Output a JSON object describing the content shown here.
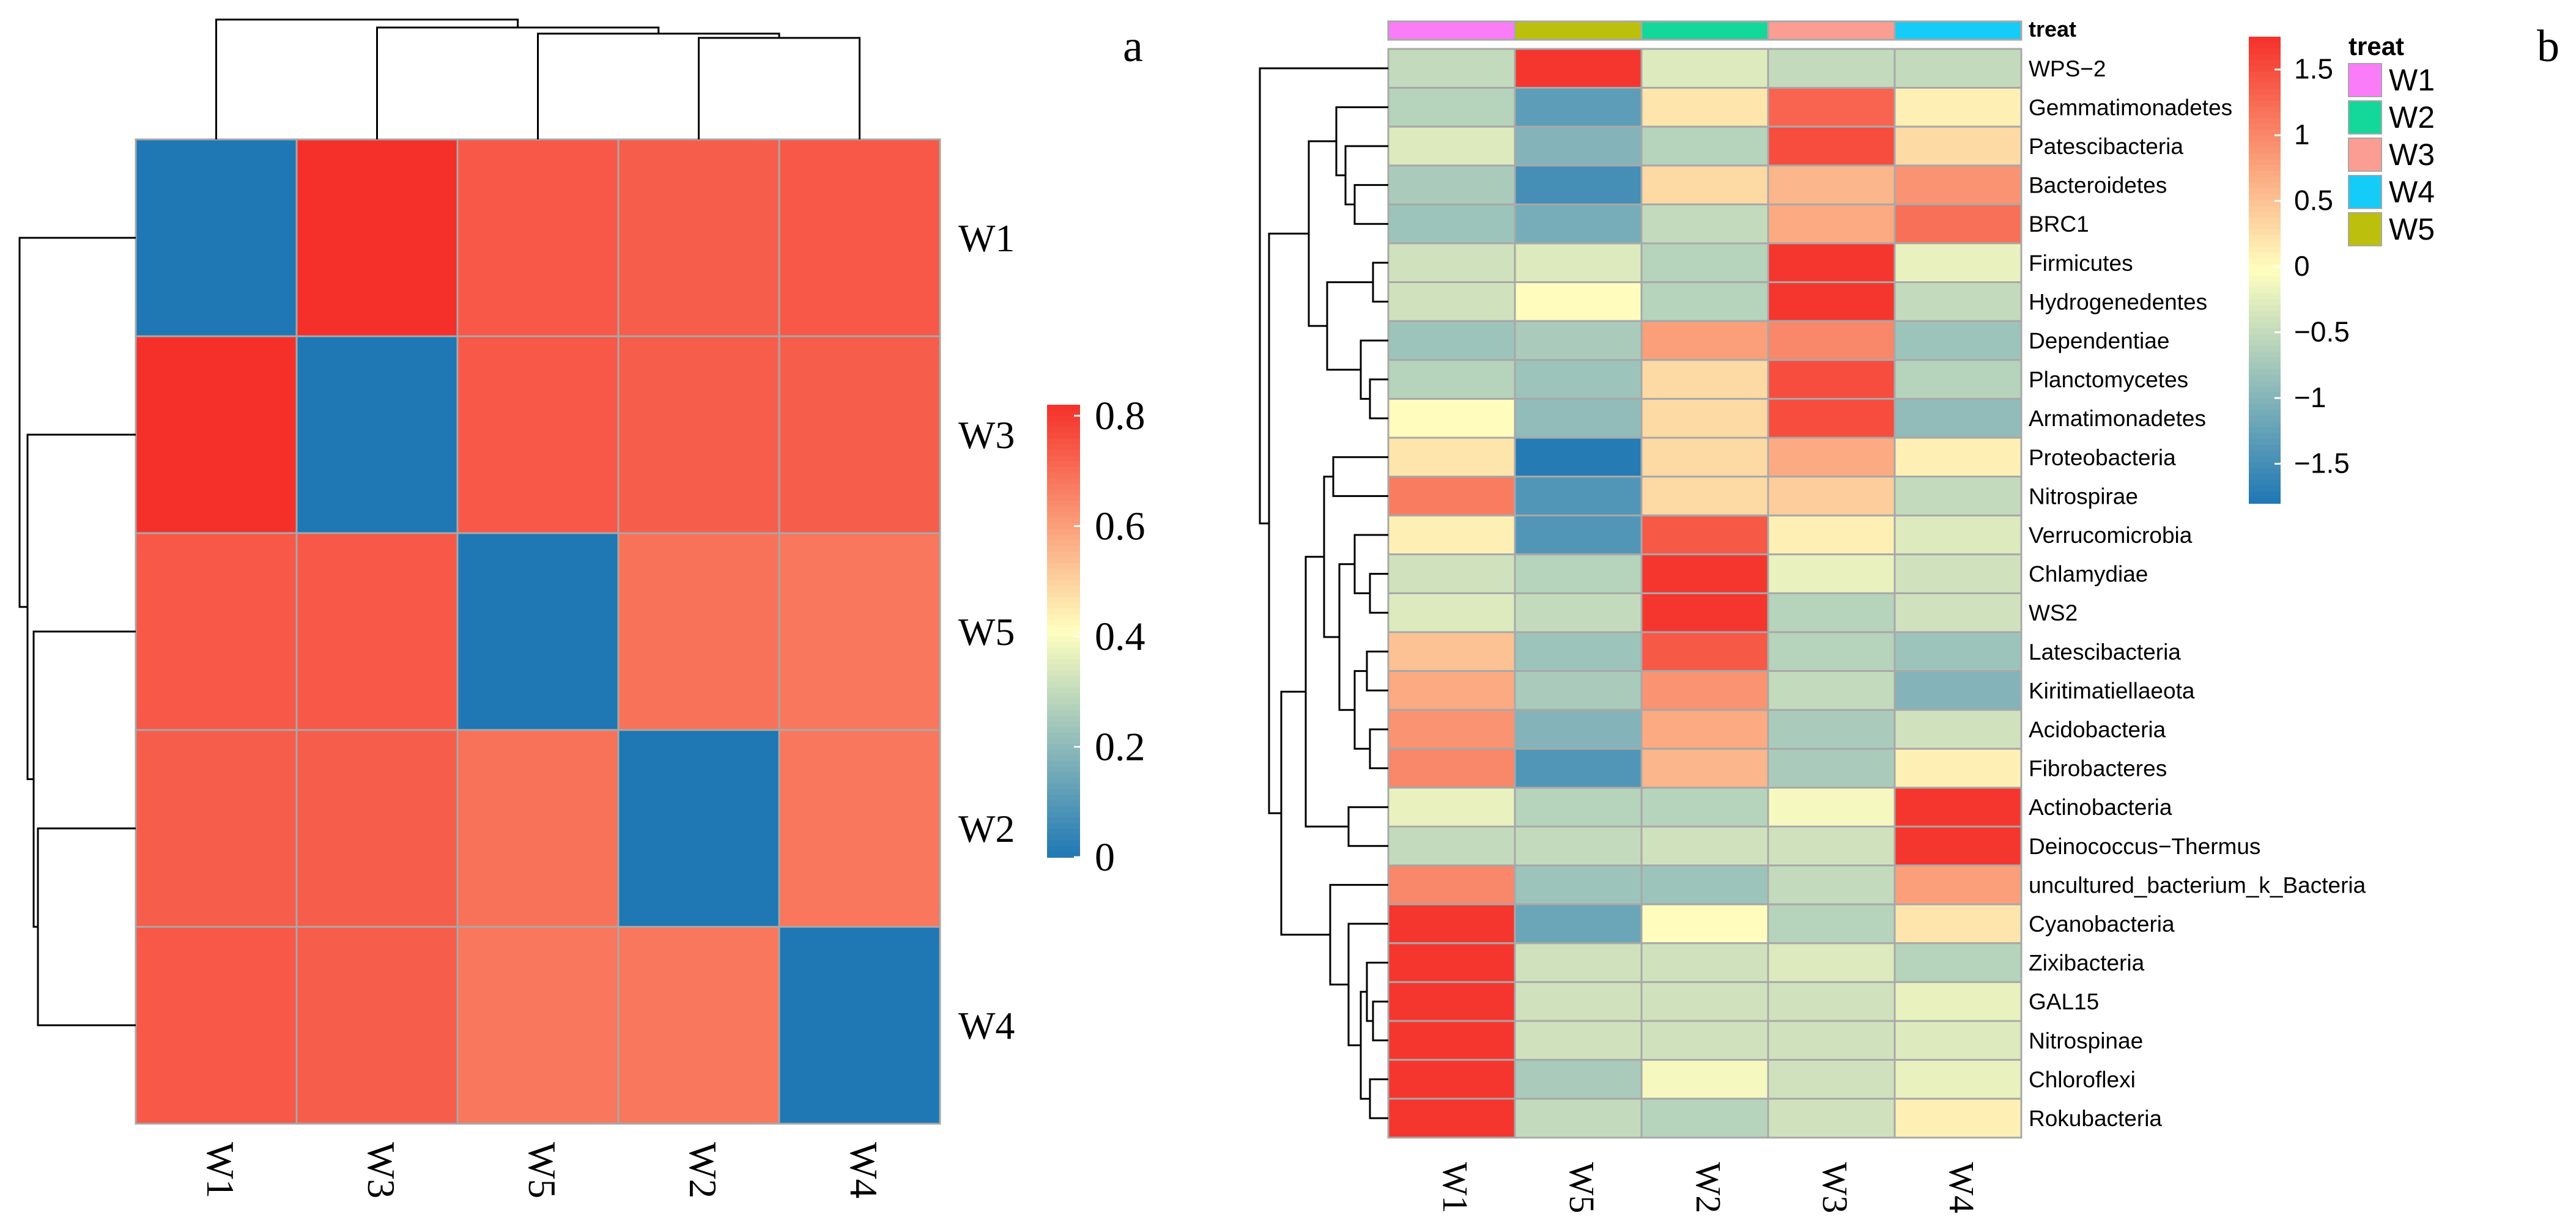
{
  "chart_data": [
    {
      "panel_label": "a",
      "type": "heatmap",
      "title": "",
      "columns": [
        "W1",
        "W3",
        "W5",
        "W2",
        "W4"
      ],
      "rows": [
        "W1",
        "W3",
        "W5",
        "W2",
        "W4"
      ],
      "values": [
        [
          0.0,
          0.82,
          0.74,
          0.73,
          0.74
        ],
        [
          0.82,
          0.0,
          0.74,
          0.73,
          0.73
        ],
        [
          0.74,
          0.74,
          0.0,
          0.69,
          0.68
        ],
        [
          0.73,
          0.73,
          0.69,
          0.0,
          0.68
        ],
        [
          0.74,
          0.73,
          0.68,
          0.68,
          0.0
        ]
      ],
      "colorbar": {
        "ticks": [
          0.8,
          0.6,
          0.4,
          0.2,
          0
        ],
        "range": [
          0,
          0.82
        ]
      },
      "colors": {
        "low": "#1f77b4",
        "mid": "#ffffbf",
        "high": "#f5302a",
        "grid": "#a8a8a8",
        "tree": "#000000"
      }
    },
    {
      "panel_label": "b",
      "type": "heatmap",
      "title": "",
      "columns": [
        "W1",
        "W5",
        "W2",
        "W3",
        "W4"
      ],
      "rows": [
        "WPS−2",
        "Gemmatimonadetes",
        "Patescibacteria",
        "Bacteroidetes",
        "BRC1",
        "Firmicutes",
        "Hydrogenedentes",
        "Dependentiae",
        "Planctomycetes",
        "Armatimonadetes",
        "Proteobacteria",
        "Nitrospirae",
        "Verrucomicrobia",
        "Chlamydiae",
        "WS2",
        "Latescibacteria",
        "Kiritimatiellaeota",
        "Acidobacteria",
        "Fibrobacteres",
        "Actinobacteria",
        "Deinococcus−Thermus",
        "uncultured_bacterium_k_Bacteria",
        "Cyanobacteria",
        "Zixibacteria",
        "GAL15",
        "Nitrospinae",
        "Chloroflexi",
        "Rokubacteria"
      ],
      "values": [
        [
          -0.5,
          1.7,
          -0.3,
          -0.5,
          -0.5
        ],
        [
          -0.6,
          -1.3,
          0.2,
          1.3,
          0.1
        ],
        [
          -0.3,
          -1.0,
          -0.6,
          1.5,
          0.3
        ],
        [
          -0.7,
          -1.5,
          0.3,
          0.6,
          0.9
        ],
        [
          -0.8,
          -1.1,
          -0.5,
          0.7,
          1.2
        ],
        [
          -0.4,
          -0.3,
          -0.6,
          1.7,
          -0.2
        ],
        [
          -0.4,
          0.0,
          -0.6,
          1.7,
          -0.5
        ],
        [
          -0.8,
          -0.7,
          0.8,
          1.0,
          -0.8
        ],
        [
          -0.6,
          -0.8,
          0.3,
          1.5,
          -0.6
        ],
        [
          0.0,
          -0.9,
          0.3,
          1.5,
          -0.9
        ],
        [
          0.2,
          -1.75,
          0.3,
          0.7,
          0.1
        ],
        [
          1.1,
          -1.4,
          0.3,
          0.4,
          -0.5
        ],
        [
          0.1,
          -1.4,
          1.4,
          0.1,
          -0.3
        ],
        [
          -0.4,
          -0.6,
          1.7,
          -0.2,
          -0.4
        ],
        [
          -0.3,
          -0.5,
          1.7,
          -0.6,
          -0.4
        ],
        [
          0.5,
          -0.8,
          1.4,
          -0.6,
          -0.8
        ],
        [
          0.7,
          -0.7,
          0.9,
          -0.5,
          -1.0
        ],
        [
          0.9,
          -1.0,
          0.7,
          -0.7,
          -0.4
        ],
        [
          1.0,
          -1.4,
          0.6,
          -0.7,
          0.1
        ],
        [
          -0.2,
          -0.6,
          -0.6,
          -0.1,
          1.7
        ],
        [
          -0.5,
          -0.5,
          -0.4,
          -0.4,
          1.7
        ],
        [
          1.0,
          -0.8,
          -0.8,
          -0.5,
          0.8
        ],
        [
          1.7,
          -1.2,
          0.0,
          -0.6,
          0.2
        ],
        [
          1.7,
          -0.4,
          -0.4,
          -0.3,
          -0.6
        ],
        [
          1.7,
          -0.4,
          -0.4,
          -0.4,
          -0.2
        ],
        [
          1.7,
          -0.4,
          -0.4,
          -0.4,
          -0.3
        ],
        [
          1.7,
          -0.7,
          -0.1,
          -0.4,
          -0.2
        ],
        [
          1.7,
          -0.5,
          -0.6,
          -0.4,
          0.1
        ]
      ],
      "annotation": {
        "label": "treat",
        "groups": [
          "W1",
          "W5",
          "W2",
          "W3",
          "W4"
        ],
        "legend_title": "treat",
        "legend_items": [
          "W1",
          "W2",
          "W3",
          "W4",
          "W5"
        ],
        "legend_colors": {
          "W1": "#fb7cf9",
          "W2": "#14d79a",
          "W3": "#fb9d92",
          "W4": "#15cbf7",
          "W5": "#bcc00c"
        }
      },
      "colorbar": {
        "ticks": [
          "1.5",
          "1",
          "0.5",
          "0",
          "−0.5",
          "−1",
          "−1.5"
        ],
        "tick_values": [
          1.5,
          1,
          0.5,
          0,
          -0.5,
          -1,
          -1.5
        ],
        "range": [
          -1.8,
          1.75
        ]
      },
      "colors": {
        "low": "#1f77b4",
        "mid": "#ffffbf",
        "high": "#f5302a",
        "grid": "#a8a8a8",
        "tree": "#000000"
      }
    }
  ]
}
